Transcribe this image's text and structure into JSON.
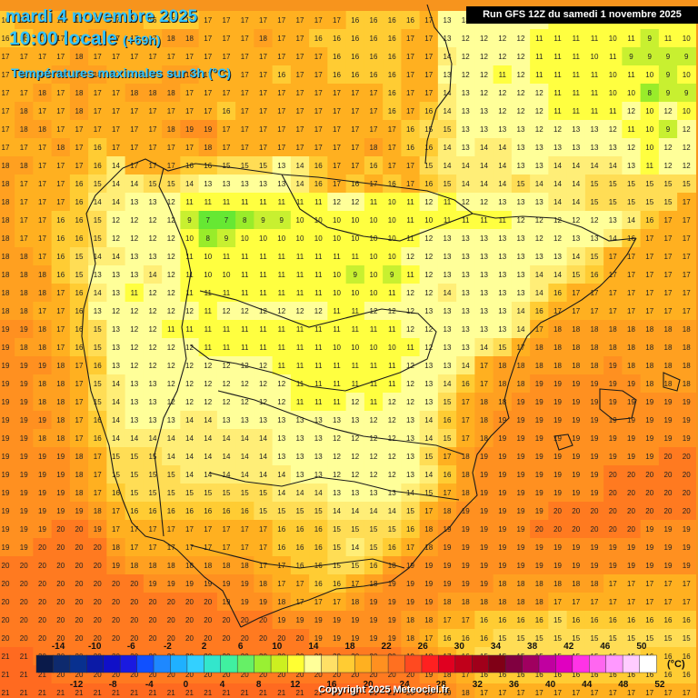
{
  "header": {
    "date": "mardi 4 novembre 2025",
    "time": "10:00 locale",
    "offset": "(+69h)",
    "parameter": "Températures maximales sur 3h (°C)"
  },
  "run_info": "Run GFS 12Z du samedi 1 novembre 2025",
  "copyright": "Copyright 2025 Meteociel.fr",
  "legend": {
    "unit": "(°C)",
    "top_labels": [
      "-14",
      "-10",
      "-6",
      "-2",
      "2",
      "6",
      "10",
      "14",
      "18",
      "22",
      "26",
      "30",
      "34",
      "38",
      "42",
      "46",
      "50"
    ],
    "bottom_labels": [
      "-12",
      "-8",
      "-4",
      "0",
      "4",
      "8",
      "12",
      "16",
      "20",
      "24",
      "28",
      "32",
      "36",
      "40",
      "44",
      "48",
      "52"
    ],
    "colors": [
      "#0a1a4a",
      "#0e2a6e",
      "#08308f",
      "#0b1aa6",
      "#1010c8",
      "#1a1ae0",
      "#1050ff",
      "#1e88ff",
      "#1fb0ff",
      "#33d0ff",
      "#33e6cc",
      "#40f0a0",
      "#66f066",
      "#99f033",
      "#ccf020",
      "#ffff33",
      "#ffff99",
      "#ffe066",
      "#ffcc33",
      "#ffb020",
      "#ff9020",
      "#ff7020",
      "#ff4a20",
      "#ff2020",
      "#e00020",
      "#c0001a",
      "#a0001a",
      "#800016",
      "#800040",
      "#a00060",
      "#c000a0",
      "#e000c0",
      "#ff33e6",
      "#ff66f0",
      "#ff99ff",
      "#ffccff",
      "#ffffff"
    ]
  },
  "map_data": {
    "region": "Péninsule Ibérique",
    "grid_rows": [
      "16 17 17 17 17 17 17 17 16 16 16 17 17 17 17 17 17 17 17 16 16 16 16 17 13 13 13 13 12 12 11 11 11 11 11 10 11 11",
      "16 16 17 17 17 18 17 17 17 18 18 17 17 17 18 17 17 16 16 16 16 16 17 17 13 12 12 12 12 11 11 11 11 10 11 9 11 10",
      "17 17 17 17 18 17 17 17 17 17 17 17 17 17 17 17 17 17 16 16 16 16 17 17 14 12 12 12 12 11 11 11 10 11 9 9 9 9",
      "17 17 17 18 18 18 17 17 17 18 18 17 17 17 17 16 17 17 16 16 16 16 17 17 13 12 12 11 12 11 11 11 11 10 11 10 9 10",
      "17 17 18 17 18 17 17 18 18 18 17 17 17 17 17 17 17 17 17 17 17 16 17 17 14 13 12 12 12 12 11 11 11 10 10 8 9 9",
      "17 18 17 17 18 17 17 17 17 17 17 17 16 17 17 17 17 17 17 17 17 16 17 16 14 13 13 12 12 12 11 11 11 11 12 10 12 10",
      "17 18 18 17 17 17 17 17 17 18 19 19 17 17 17 17 17 17 17 17 17 17 16 15 15 13 13 13 13 12 12 13 13 12 11 10 9 12",
      "17 17 17 18 17 16 17 17 17 17 17 18 17 17 17 17 17 17 17 17 18 17 16 16 14 13 14 14 13 13 13 13 13 13 12 10 12 12",
      "18 18 17 17 17 16 14 17 17 17 16 16 15 15 15 13 14 16 17 17 16 17 17 15 14 14 14 14 13 13 14 14 14 14 13 11 12 12",
      "18 17 17 17 16 15 14 14 15 15 14 13 13 13 13 13 14 16 17 16 17 16 17 16 15 14 14 14 15 14 14 14 15 15 15 15 15 15",
      "18 17 17 17 16 14 14 13 13 12 11 11 11 11 11 11 11 11 12 12 11 10 11 12 11 12 12 13 13 13 14 14 15 15 15 15 15 17",
      "18 17 17 16 16 15 12 12 12 12 9 7 7 8 9 9 10 10 10 10 10 10 11 10 11 11 11 11 12 12 12 12 12 13 14 16 17 17",
      "18 17 17 16 16 15 12 12 12 12 10 8 9 10 10 10 10 10 10 10 10 10 11 12 13 13 13 13 13 12 12 13 13 14 16 17 17 17",
      "18 18 17 16 15 14 14 13 13 12 11 10 11 11 11 11 11 11 11 11 10 10 12 12 13 13 13 13 13 13 13 14 15 17 17 17 17 17",
      "18 18 18 16 15 13 13 13 14 12 11 10 10 11 11 11 11 11 10 9 10 9 11 12 13 13 13 13 13 14 14 15 16 17 17 17 17 17",
      "18 18 18 17 16 14 13 11 12 12 11 11 11 11 11 11 11 11 10 10 10 11 12 12 14 13 13 13 13 14 16 17 17 17 17 17 17 17",
      "18 18 17 17 16 13 12 12 12 12 12 11 12 12 12 12 12 12 11 11 12 12 12 13 13 13 13 13 14 16 17 17 17 17 17 17 17 17",
      "19 19 18 17 16 15 13 12 12 11 11 11 11 11 11 11 11 11 11 11 11 11 12 12 13 13 13 13 14 17 18 18 18 18 18 18 18 18",
      "19 18 18 17 16 15 13 12 12 12 12 11 11 11 11 11 11 11 10 10 10 10 11 12 13 13 14 15 17 18 18 18 18 18 18 18 18 18",
      "19 19 19 18 17 16 13 12 12 12 12 12 12 12 12 11 11 11 11 11 11 11 12 13 13 14 17 18 18 18 18 18 18 19 18 18 18 18",
      "19 19 18 18 17 15 14 13 13 12 12 12 12 12 12 12 11 11 11 11 11 11 12 13 14 16 17 18 18 19 19 19 19 19 19 18 18 18",
      "19 19 18 18 17 15 14 13 13 12 12 12 12 12 12 12 11 11 11 12 11 12 12 13 15 17 18 18 19 19 19 19 19 19 19 19 19 19",
      "19 19 19 18 17 16 14 13 13 13 14 14 13 13 13 13 13 13 13 13 12 12 13 14 16 17 18 19 19 19 19 19 19 19 19 19 19 19",
      "19 19 18 18 17 16 14 14 14 14 14 14 14 14 14 13 13 13 12 12 12 12 13 14 15 17 18 19 19 19 19 19 19 19 19 19 19 19",
      "19 19 19 19 18 17 15 15 15 14 14 14 14 14 14 13 13 13 12 12 12 12 13 15 17 18 19 19 19 19 19 19 19 19 19 19 20 20",
      "19 19 19 19 18 17 15 15 15 15 14 14 14 14 14 14 13 13 12 12 12 12 13 14 16 18 19 19 19 19 19 19 19 20 20 20 20 20",
      "19 19 19 19 18 17 16 15 15 15 15 15 15 15 15 14 14 14 13 13 13 13 14 15 17 18 19 19 19 19 19 19 19 20 20 20 20 20",
      "19 19 19 19 19 18 17 16 16 16 16 16 16 16 15 15 15 15 14 14 14 14 15 17 18 19 19 19 19 19 20 20 20 20 20 20 20 20",
      "19 19 19 20 20 19 17 17 17 17 17 17 17 17 17 16 16 16 15 15 15 15 16 18 19 19 19 19 19 20 20 20 20 20 20 19 19 19",
      "19 19 20 20 20 20 18 17 17 17 17 17 17 17 17 16 16 16 15 14 15 16 17 18 19 19 19 19 19 19 19 19 19 19 19 19 19 19",
      "20 20 20 20 20 20 19 18 18 18 18 18 18 18 17 17 16 16 15 15 16 18 19 19 19 19 19 19 19 19 19 19 19 19 19 19 19 19",
      "20 20 20 20 20 20 20 20 19 19 19 19 19 19 18 17 17 16 16 17 18 19 19 19 19 19 19 18 18 18 18 18 18 17 17 17 17 17",
      "20 20 20 20 20 20 20 20 20 20 20 20 19 19 19 18 17 17 17 18 19 19 19 19 18 18 18 18 18 18 17 17 17 17 17 17 17 17",
      "20 20 20 20 20 20 20 20 20 20 20 20 20 20 20 19 19 19 19 19 19 19 18 18 17 17 16 16 16 16 15 16 16 16 16 16 16 16",
      "20 20 20 20 20 20 20 20 20 20 20 20 20 20 20 20 20 19 19 19 19 19 18 17 16 16 16 15 15 15 15 15 15 15 15 15 15 15",
      "21 21 20 20 20 20 20 20 20 20 20 20 20 20 20 20 20 20 20 20 20 20 19 18 17 16 15 15 15 15 15 15 15 15 15 16 16 16",
      "21 21 21 20 20 20 20 20 20 20 20 20 20 20 20 20 20 20 20 20 20 20 20 19 18 17 16 16 16 16 16 16 16 16 16 16 16 16",
      "21 21 21 21 21 21 21 21 21 21 21 21 21 21 21 21 21 21 21 21 21 21 20 20 19 18 17 17 17 17 17 17 17 17 17 17 17 17"
    ]
  }
}
